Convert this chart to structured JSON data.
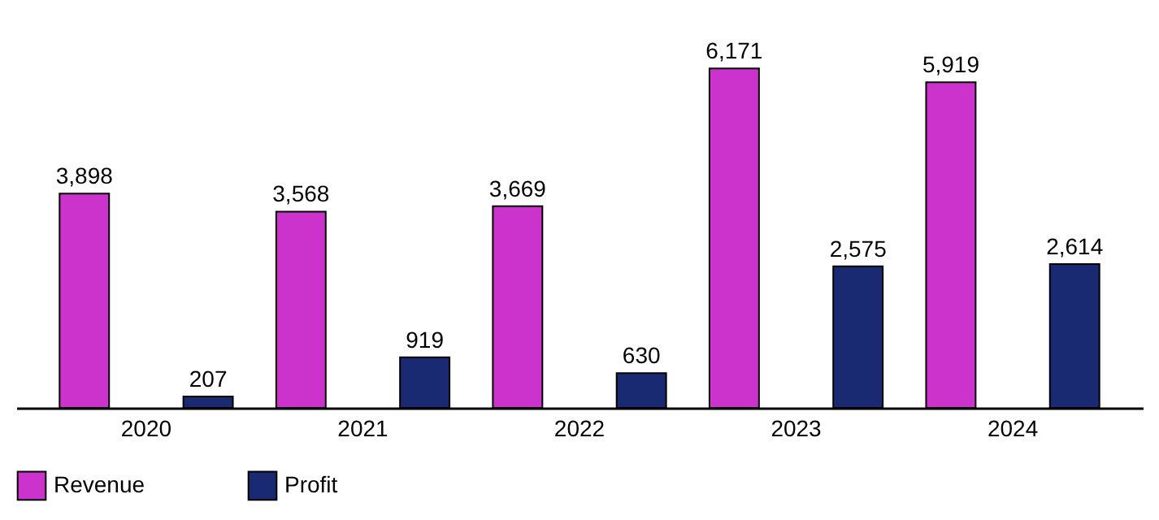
{
  "chart_data": {
    "type": "bar",
    "categories": [
      "2020",
      "2021",
      "2022",
      "2023",
      "2024"
    ],
    "series": [
      {
        "name": "Revenue",
        "color": "#cc33cc",
        "values": [
          3898,
          3568,
          3669,
          6171,
          5919
        ],
        "value_labels": [
          "3,898",
          "3,568",
          "3,669",
          "6,171",
          "5,919"
        ]
      },
      {
        "name": "Profit",
        "color": "#1a2a72",
        "values": [
          207,
          919,
          630,
          2575,
          2614
        ],
        "value_labels": [
          "207",
          "919",
          "630",
          "2,575",
          "2,614"
        ]
      }
    ],
    "legend": "bottom",
    "grid": false
  }
}
